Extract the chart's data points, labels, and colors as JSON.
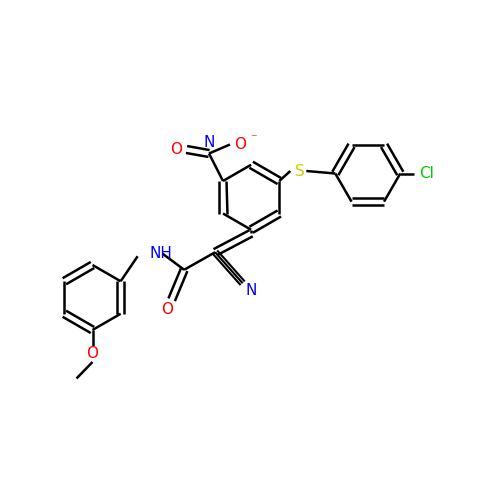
{
  "bg_color": "#ffffff",
  "bond_color": "#000000",
  "bond_width": 1.8,
  "font_size": 11,
  "colors": {
    "N": "#0000ff",
    "O": "#ff0000",
    "S": "#cccc00",
    "Cl": "#00cc00",
    "C": "#000000"
  }
}
